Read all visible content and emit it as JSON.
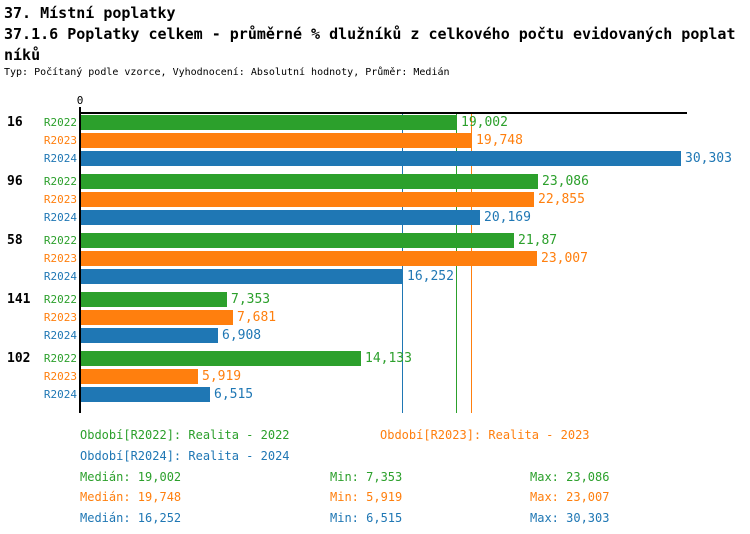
{
  "header": {
    "title": "37. Místní poplatky",
    "subtitle_line1": "37.1.6 Poplatky celkem - průměrné % dlužníků z celkového počtu evidovaných poplat",
    "subtitle_line2": "níků",
    "meta": "Typ: Počítaný podle vzorce, Vyhodnocení: Absolutní hodnoty, Průměr: Medián"
  },
  "chart_data": {
    "type": "bar",
    "orientation": "horizontal",
    "title": "37.1.6 Poplatky celkem - průměrné % dlužníků z celkového počtu evidovaných poplatníků",
    "x_axis": {
      "min": 0,
      "max": 30.7,
      "tick_labels": [
        "0"
      ],
      "grid": false
    },
    "categories": [
      "16",
      "96",
      "58",
      "141",
      "102"
    ],
    "series": [
      {
        "name": "R2022",
        "color": "#2ca02c",
        "values": [
          19.002,
          23.086,
          21.87,
          7.353,
          14.133
        ],
        "value_labels": [
          "19,002",
          "23,086",
          "21,87",
          "7,353",
          "14,133"
        ],
        "median": 19.002
      },
      {
        "name": "R2023",
        "color": "#ff7f0e",
        "values": [
          19.748,
          22.855,
          23.007,
          7.681,
          5.919
        ],
        "value_labels": [
          "19,748",
          "22,855",
          "23,007",
          "7,681",
          "5,919"
        ],
        "median": 19.748
      },
      {
        "name": "R2024",
        "color": "#1f77b4",
        "values": [
          30.303,
          20.169,
          16.252,
          6.908,
          6.515
        ],
        "value_labels": [
          "30,303",
          "20,169",
          "16,252",
          "6,908",
          "6,515"
        ],
        "median": 16.252
      }
    ],
    "median_lines": [
      {
        "series": "R2022",
        "value": 19.002,
        "color": "#2ca02c"
      },
      {
        "series": "R2023",
        "value": 19.748,
        "color": "#ff7f0e"
      },
      {
        "series": "R2024",
        "value": 16.252,
        "color": "#1f77b4"
      }
    ]
  },
  "legend": {
    "items": [
      {
        "label": "Období[R2022]: Realita - 2022",
        "color": "#2ca02c"
      },
      {
        "label": "Období[R2023]: Realita - 2023",
        "color": "#ff7f0e"
      },
      {
        "label": "Období[R2024]: Realita - 2024",
        "color": "#1f77b4"
      }
    ],
    "stats": [
      {
        "series": "R2022",
        "color": "#2ca02c",
        "median": "Medián: 19,002",
        "min": "Min: 7,353",
        "max": "Max: 23,086"
      },
      {
        "series": "R2023",
        "color": "#ff7f0e",
        "median": "Medián: 19,748",
        "min": "Min: 5,919",
        "max": "Max: 23,007"
      },
      {
        "series": "R2024",
        "color": "#1f77b4",
        "median": "Medián: 16,252",
        "min": "Min: 6,515",
        "max": "Max: 30,303"
      }
    ]
  }
}
